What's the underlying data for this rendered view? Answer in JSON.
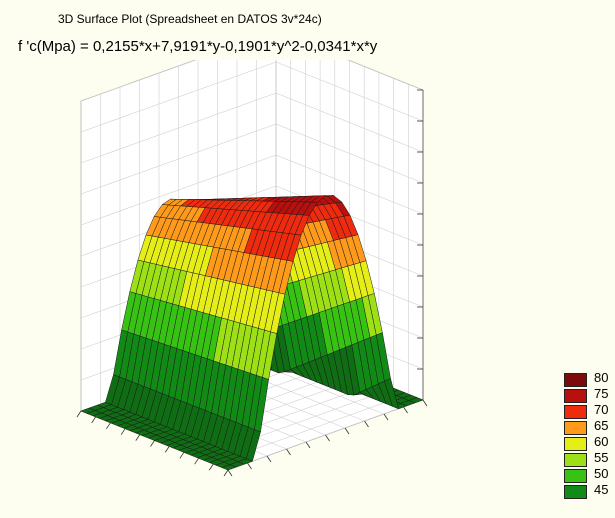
{
  "chart_data": {
    "type": "surface",
    "title": "3D Surface Plot (Spreadsheet en DATOS 3v*24c)",
    "equation": "f 'c(Mpa) = 0,2155*x+7,9191*y-0,1901*y^2-0,0341*x*y",
    "function": {
      "x_coef": 0.2155,
      "y_coef": 7.9191,
      "y2_coef": -0.1901,
      "xy_coef": -0.0341
    },
    "xlim": [
      8,
      30
    ],
    "ylim": [
      0,
      40
    ],
    "zlim": [
      40,
      90
    ],
    "legend": {
      "placement": "right",
      "levels": [
        {
          "value": "80",
          "color": "#7a0c0c"
        },
        {
          "value": "75",
          "color": "#b80f0f"
        },
        {
          "value": "70",
          "color": "#ee2a0f"
        },
        {
          "value": "65",
          "color": "#ff9a1a"
        },
        {
          "value": "60",
          "color": "#e6ee18"
        },
        {
          "value": "55",
          "color": "#9ce015"
        },
        {
          "value": "50",
          "color": "#38c214"
        },
        {
          "value": "45",
          "color": "#128a16"
        }
      ],
      "above_color": "#c8c8c8"
    }
  }
}
